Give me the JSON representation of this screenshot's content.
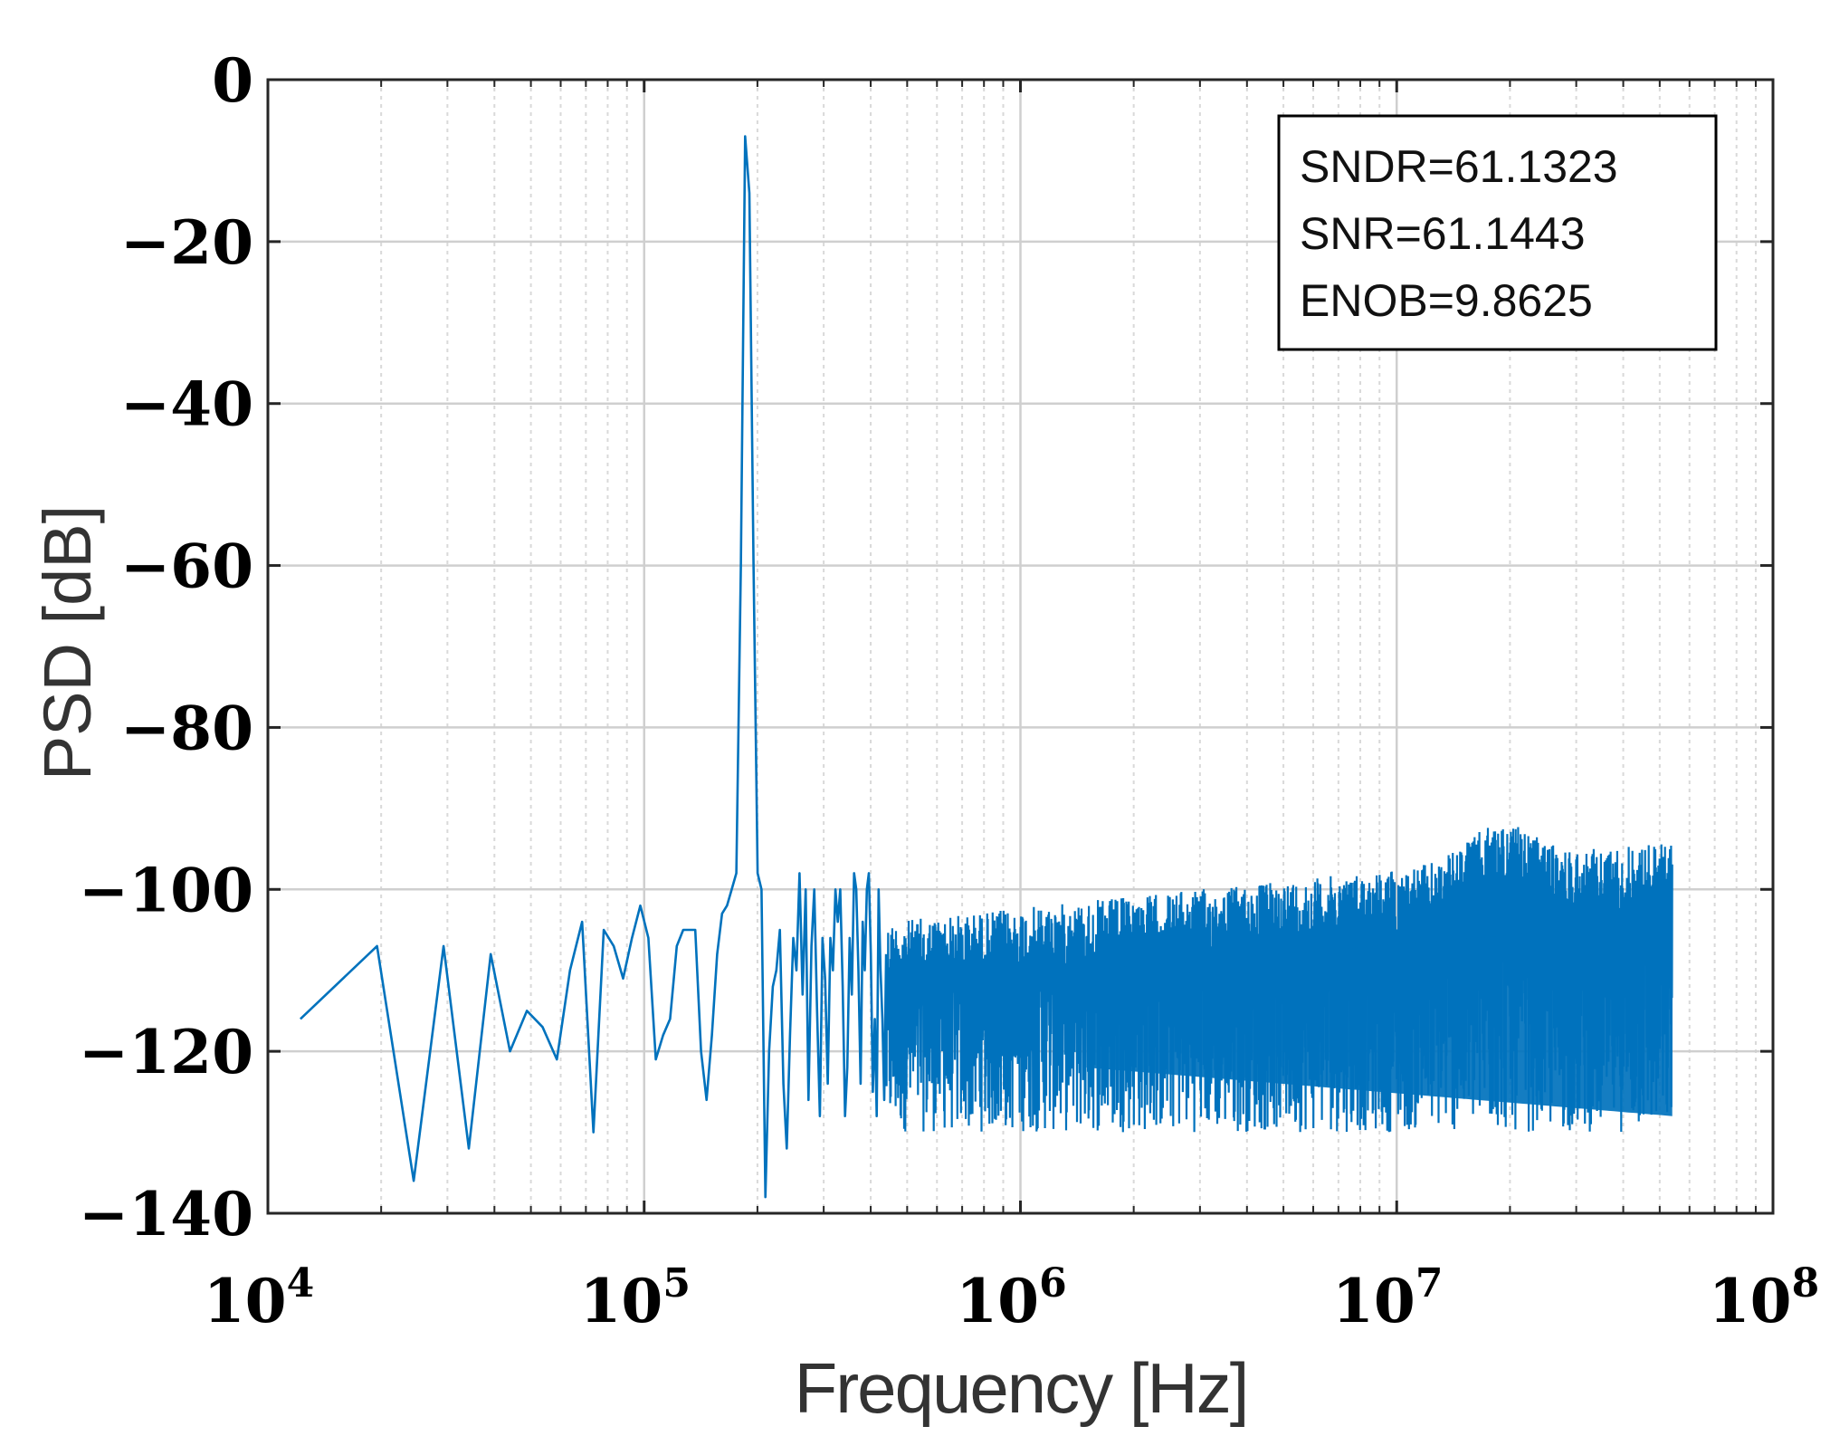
{
  "chart_data": {
    "type": "line",
    "xlabel": "Frequency [Hz]",
    "ylabel": "PSD [dB]",
    "x_scale": "log",
    "xlim": [
      10000,
      100000000
    ],
    "ylim": [
      -140,
      0
    ],
    "grid": true,
    "minor_grid": true,
    "x_ticks": [
      10000,
      100000,
      1000000,
      10000000,
      100000000
    ],
    "x_tick_labels": [
      {
        "base": "10",
        "exp": "4"
      },
      {
        "base": "10",
        "exp": "5"
      },
      {
        "base": "10",
        "exp": "6"
      },
      {
        "base": "10",
        "exp": "7"
      },
      {
        "base": "10",
        "exp": "8"
      }
    ],
    "y_ticks": [
      0,
      -20,
      -40,
      -60,
      -80,
      -100,
      -120,
      -140
    ],
    "y_tick_labels": [
      "0",
      "−20",
      "−40",
      "−60",
      "−80",
      "−100",
      "−120",
      "−140"
    ],
    "annotation": [
      "SNDR=61.1323",
      "SNR=61.1443",
      "ENOB=9.8625"
    ],
    "line_color": "#0072BD",
    "series": [
      {
        "x": [
          12200,
          19500,
          24400,
          29300,
          34200,
          39100,
          44000,
          48800,
          53700,
          58600,
          63500,
          68400,
          73300,
          78100,
          83000,
          87900,
          92800,
          97700,
          102600,
          107400,
          112300,
          117200,
          122100,
          127000,
          131800,
          136700,
          141600,
          146500,
          151400,
          156300,
          161100,
          166000,
          170900,
          175800,
          180700,
          185500,
          190400,
          195300,
          200200,
          205100,
          210000,
          214800,
          219700,
          224600,
          229500,
          234400,
          239300,
          244100,
          249000,
          253900,
          258800,
          263700,
          268600,
          273400,
          278300,
          283200,
          288100,
          293000,
          297900,
          302700,
          307600,
          312500,
          317400,
          322300,
          327100,
          332000,
          336900,
          341800,
          346700,
          351600,
          356400,
          361300,
          366200,
          371100,
          376000,
          380900,
          385700,
          390600,
          395500,
          400400,
          405300,
          410200,
          415000,
          419900,
          424800,
          429700,
          434600,
          439500
        ],
        "y": [
          -116,
          -107,
          -136,
          -107,
          -132,
          -108,
          -120,
          -115,
          -117,
          -121,
          -110,
          -104,
          -130,
          -105,
          -107,
          -111,
          -106,
          -102,
          -106,
          -121,
          -118,
          -116,
          -107,
          -105,
          -105,
          -105,
          -120,
          -126,
          -118,
          -108,
          -103,
          -102,
          -100,
          -98,
          -60,
          -7,
          -14,
          -60,
          -98,
          -100,
          -138,
          -120,
          -112,
          -110,
          -105,
          -124,
          -132,
          -118,
          -106,
          -110,
          -98,
          -113,
          -100,
          -126,
          -107,
          -100,
          -115,
          -128,
          -106,
          -111,
          -124,
          -106,
          -110,
          -100,
          -104,
          -100,
          -112,
          -128,
          -122,
          -106,
          -113,
          -98,
          -100,
          -110,
          -124,
          -104,
          -110,
          -100,
          -98,
          -108,
          -125,
          -116,
          -128,
          -100,
          -110,
          -116,
          -126,
          -108
        ]
      }
    ],
    "noise_band": {
      "x_start": 440000,
      "x_end": 54000000,
      "upper_start": -104,
      "upper_end": -94,
      "upper_max": -90,
      "upper_max_x": 19000000,
      "lower": -138
    }
  }
}
